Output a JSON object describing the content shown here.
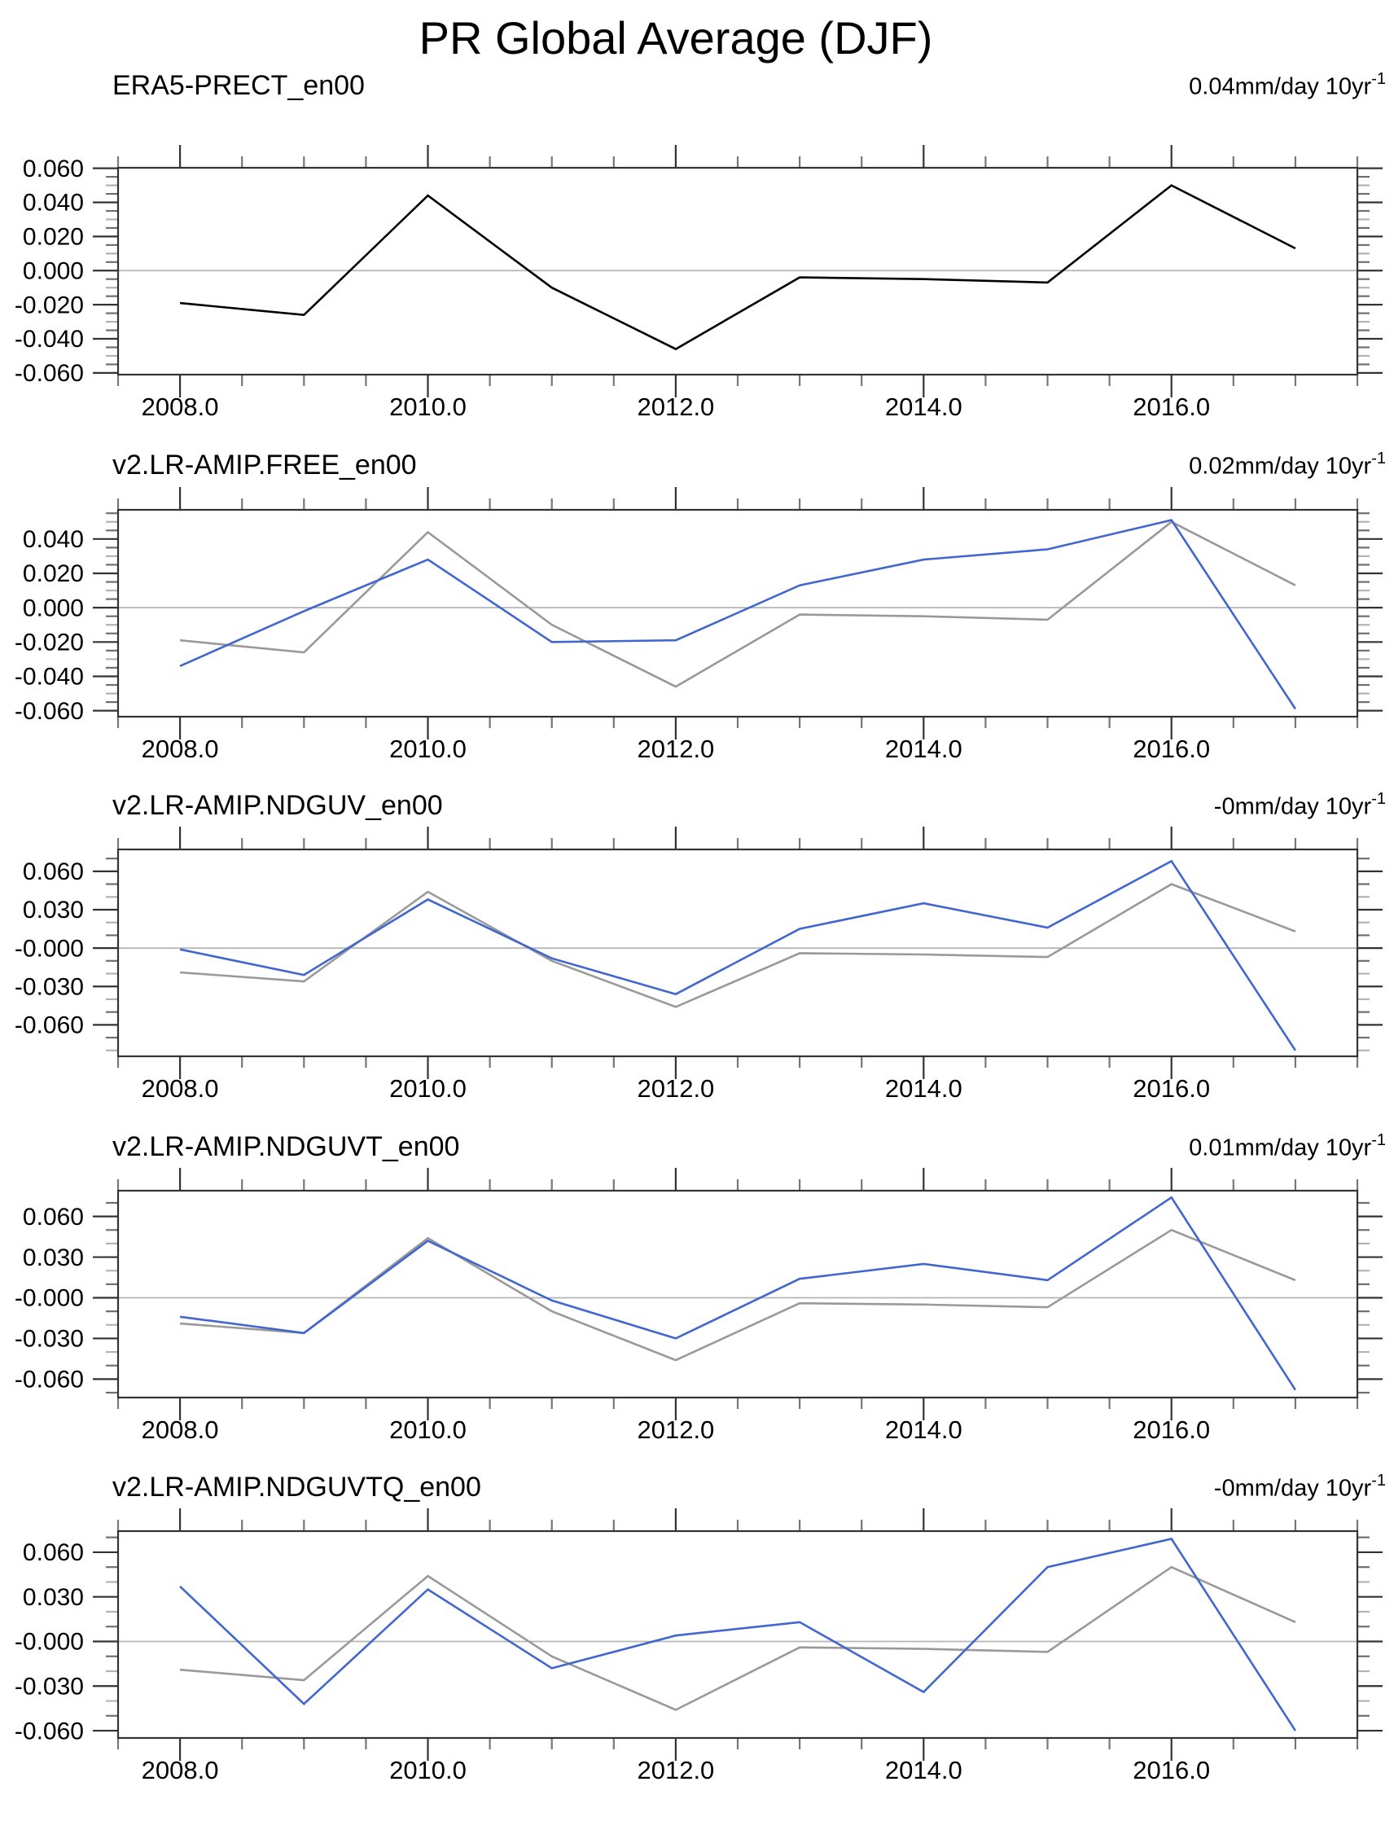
{
  "title": "PR Global Average (DJF)",
  "unit_label": "mm/day 10yr",
  "unit_exponent": "-1",
  "chart_data": {
    "type": "line",
    "x_years": [
      2008,
      2009,
      2010,
      2011,
      2012,
      2013,
      2014,
      2015,
      2016,
      2017
    ],
    "x_range": [
      2007.5,
      2017.5
    ],
    "x_minor_step": 0.5,
    "x_tick_years": [
      2008,
      2010,
      2012,
      2014,
      2016
    ],
    "x_tick_labels": [
      "2008.0",
      "2010.0",
      "2012.0",
      "2014.0",
      "2016.0"
    ],
    "grid": "zero-line-only",
    "legend_position": "none",
    "reference": {
      "name": "ERA5-PRECT_en00",
      "color_primary": "#000000",
      "color_overlay": "#999999",
      "values": [
        -0.019,
        -0.026,
        0.044,
        -0.01,
        -0.046,
        -0.004,
        -0.005,
        -0.007,
        0.05,
        0.013
      ]
    },
    "model_color": "#4166cf",
    "zero_line_color": "#b5b5b5",
    "axis_color": "#333333",
    "panels": [
      {
        "title": "ERA5-PRECT_en00",
        "trend": "0.04",
        "model_values": null,
        "y_tick_values": [
          0.06,
          0.04,
          0.02,
          0.0,
          -0.02,
          -0.04,
          -0.06
        ],
        "y_tick_labels": [
          "0.060",
          "0.040",
          "0.020",
          "0.000",
          "-0.020",
          "-0.040",
          "-0.060"
        ],
        "y_minor_step": 0.005,
        "y_top": 0.0603,
        "y_bottom": -0.061
      },
      {
        "title": "v2.LR-AMIP.FREE_en00",
        "trend": "0.02",
        "model_values": [
          -0.034,
          -0.002,
          0.028,
          -0.02,
          -0.019,
          0.013,
          0.028,
          0.034,
          0.051,
          -0.059
        ],
        "y_tick_values": [
          0.04,
          0.02,
          0.0,
          -0.02,
          -0.04,
          -0.06
        ],
        "y_tick_labels": [
          "0.040",
          "0.020",
          "0.000",
          "-0.020",
          "-0.040",
          "-0.060"
        ],
        "y_minor_step": 0.005,
        "y_top": 0.057,
        "y_bottom": -0.0635
      },
      {
        "title": "v2.LR-AMIP.NDGUV_en00",
        "trend": "-0",
        "model_values": [
          -0.001,
          -0.021,
          0.038,
          -0.008,
          -0.036,
          0.015,
          0.035,
          0.016,
          0.068,
          -0.08
        ],
        "y_tick_values": [
          0.06,
          0.03,
          0.0,
          -0.03,
          -0.06
        ],
        "y_tick_labels": [
          "0.060",
          "0.030",
          "-0.000",
          "-0.030",
          "-0.060"
        ],
        "y_minor_step": 0.01,
        "y_top": 0.0771,
        "y_bottom": -0.0846
      },
      {
        "title": "v2.LR-AMIP.NDGUVT_en00",
        "trend": "0.01",
        "model_values": [
          -0.014,
          -0.026,
          0.042,
          -0.002,
          -0.03,
          0.014,
          0.025,
          0.013,
          0.074,
          -0.068
        ],
        "y_tick_values": [
          0.06,
          0.03,
          0.0,
          -0.03,
          -0.06
        ],
        "y_tick_labels": [
          "0.060",
          "0.030",
          "-0.000",
          "-0.030",
          "-0.060"
        ],
        "y_minor_step": 0.01,
        "y_top": 0.079,
        "y_bottom": -0.0736
      },
      {
        "title": "v2.LR-AMIP.NDGUVTQ_en00",
        "trend": "-0",
        "model_values": [
          0.037,
          -0.042,
          0.035,
          -0.018,
          0.004,
          0.013,
          -0.034,
          0.05,
          0.069,
          -0.06
        ],
        "y_tick_values": [
          0.06,
          0.03,
          0.0,
          -0.03,
          -0.06
        ],
        "y_tick_labels": [
          "0.060",
          "0.030",
          "-0.000",
          "-0.030",
          "-0.060"
        ],
        "y_minor_step": 0.01,
        "y_top": 0.0742,
        "y_bottom": -0.0649
      }
    ]
  }
}
